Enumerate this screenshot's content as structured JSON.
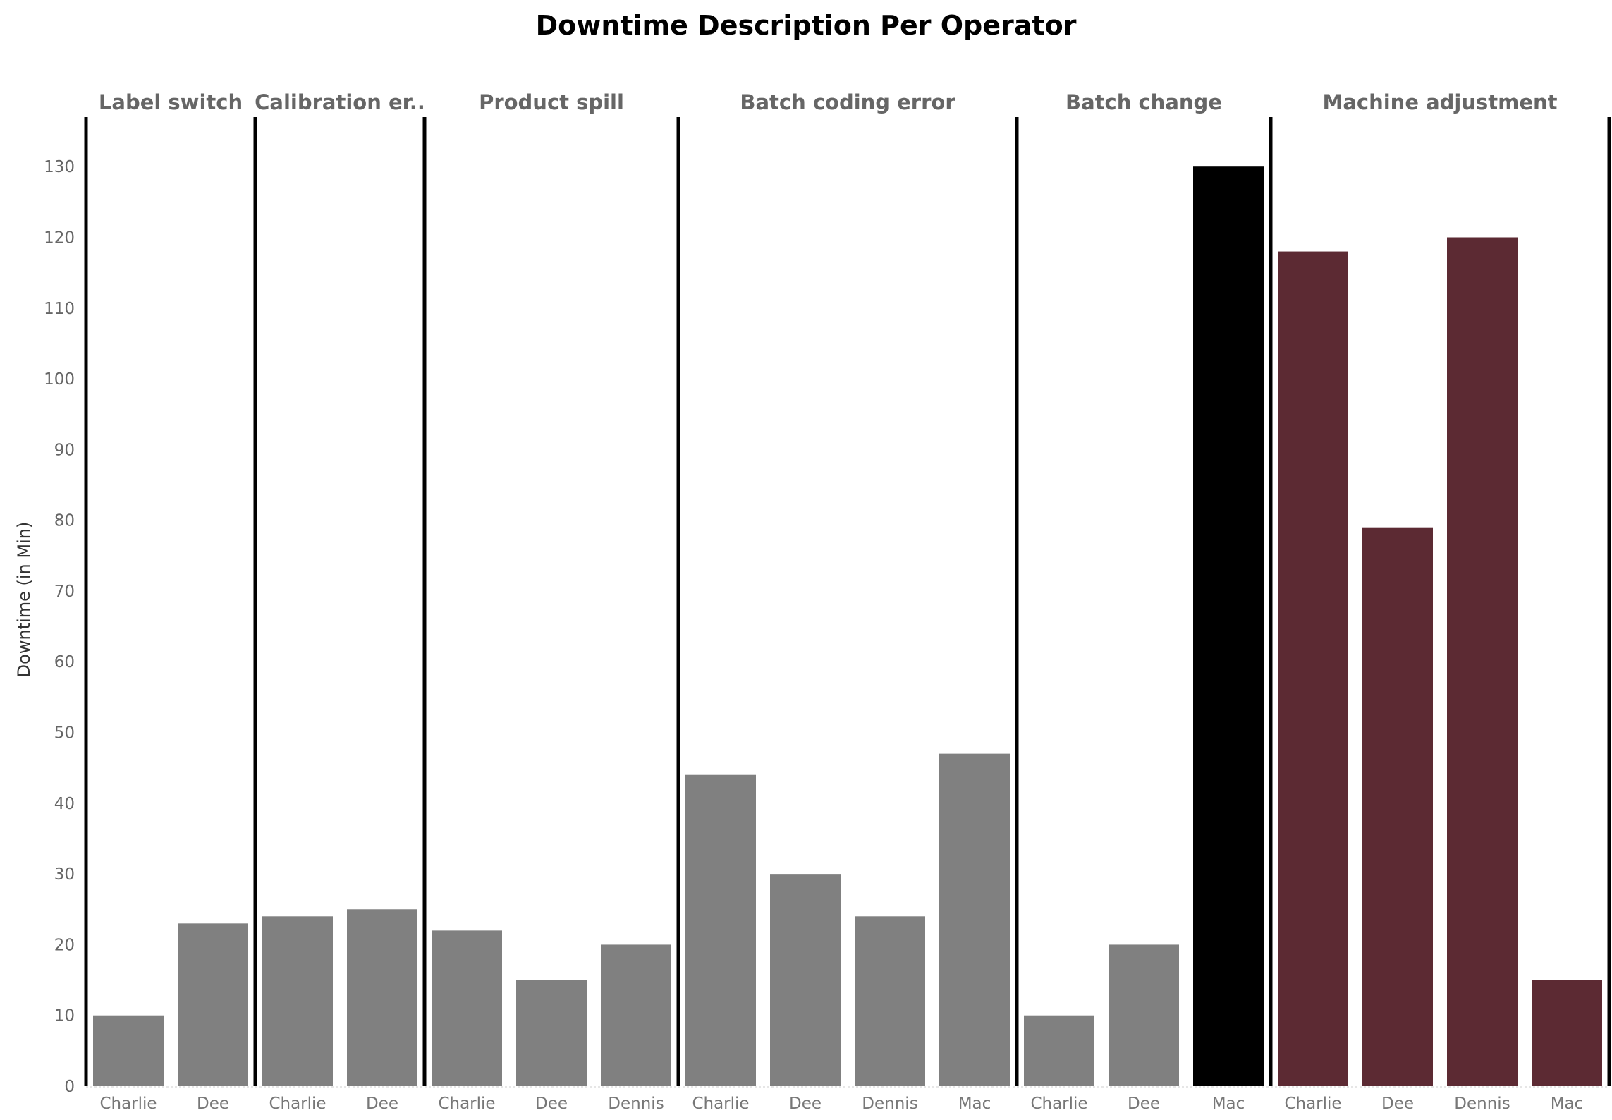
{
  "chart_data": {
    "type": "bar",
    "title": "Downtime Description Per Operator",
    "ylabel": "Downtime (in Min)",
    "xlabel": "",
    "ylim": [
      0,
      137
    ],
    "yticks": [
      0,
      10,
      20,
      30,
      40,
      50,
      60,
      70,
      80,
      90,
      100,
      110,
      120,
      130
    ],
    "grid": false,
    "colors": {
      "default": "#808080",
      "highlight_max": "#000000",
      "machine_adjustment": "#5c2a33",
      "divider": "#000000"
    },
    "groups": [
      {
        "name": "Label switch",
        "bars": [
          {
            "operator": "Charlie",
            "value": 10,
            "color": "#808080"
          },
          {
            "operator": "Dee",
            "value": 23,
            "color": "#808080"
          }
        ]
      },
      {
        "name": "Calibration er..",
        "bars": [
          {
            "operator": "Charlie",
            "value": 24,
            "color": "#808080"
          },
          {
            "operator": "Dee",
            "value": 25,
            "color": "#808080"
          }
        ]
      },
      {
        "name": "Product spill",
        "bars": [
          {
            "operator": "Charlie",
            "value": 22,
            "color": "#808080"
          },
          {
            "operator": "Dee",
            "value": 15,
            "color": "#808080"
          },
          {
            "operator": "Dennis",
            "value": 20,
            "color": "#808080"
          }
        ]
      },
      {
        "name": "Batch coding error",
        "bars": [
          {
            "operator": "Charlie",
            "value": 44,
            "color": "#808080"
          },
          {
            "operator": "Dee",
            "value": 30,
            "color": "#808080"
          },
          {
            "operator": "Dennis",
            "value": 24,
            "color": "#808080"
          },
          {
            "operator": "Mac",
            "value": 47,
            "color": "#808080"
          }
        ]
      },
      {
        "name": "Batch change",
        "bars": [
          {
            "operator": "Charlie",
            "value": 10,
            "color": "#808080"
          },
          {
            "operator": "Dee",
            "value": 20,
            "color": "#808080"
          },
          {
            "operator": "Mac",
            "value": 130,
            "color": "#000000"
          }
        ]
      },
      {
        "name": "Machine adjustment",
        "bars": [
          {
            "operator": "Charlie",
            "value": 118,
            "color": "#5c2a33"
          },
          {
            "operator": "Dee",
            "value": 79,
            "color": "#5c2a33"
          },
          {
            "operator": "Dennis",
            "value": 120,
            "color": "#5c2a33"
          },
          {
            "operator": "Mac",
            "value": 15,
            "color": "#5c2a33"
          }
        ]
      }
    ]
  }
}
